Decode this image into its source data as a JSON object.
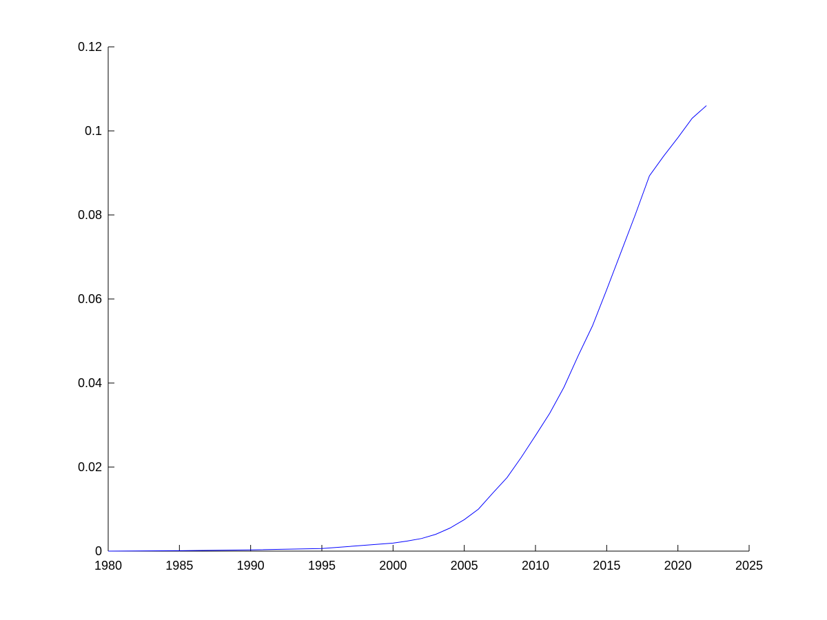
{
  "chart_data": {
    "type": "line",
    "title": "",
    "xlabel": "",
    "ylabel": "",
    "xlim": [
      1980,
      2025
    ],
    "ylim": [
      0,
      0.12
    ],
    "grid": false,
    "x_ticks": [
      "1980",
      "1985",
      "1990",
      "1995",
      "2000",
      "2005",
      "2010",
      "2015",
      "2020",
      "2025"
    ],
    "y_ticks": [
      "0",
      "0.02",
      "0.04",
      "0.06",
      "0.08",
      "0.1",
      "0.12"
    ],
    "line_color": "#0000ff",
    "series": [
      {
        "x": [
          1980,
          1985,
          1990,
          1995,
          2000,
          2001,
          2002,
          2003,
          2004,
          2005,
          2006,
          2007,
          2008,
          2009,
          2010,
          2011,
          2012,
          2013,
          2014,
          2015,
          2016,
          2017,
          2018,
          2019,
          2020,
          2021,
          2022
        ],
        "y": [
          0,
          0.0001,
          0.0003,
          0.0006,
          0.0019,
          0.0024,
          0.003,
          0.004,
          0.0055,
          0.0075,
          0.01,
          0.0138,
          0.0175,
          0.0223,
          0.0275,
          0.0328,
          0.039,
          0.0465,
          0.0536,
          0.0622,
          0.0711,
          0.08,
          0.0893,
          0.094,
          0.0984,
          0.103,
          0.106
        ]
      }
    ]
  }
}
